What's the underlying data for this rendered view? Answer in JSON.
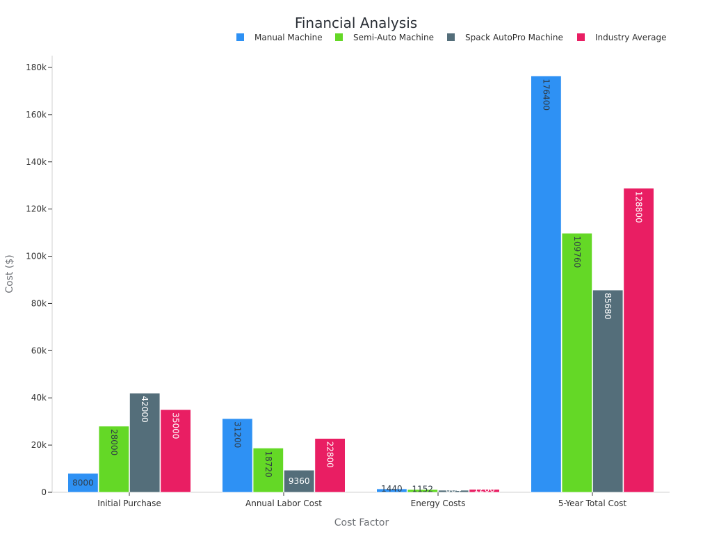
{
  "chart_data": {
    "type": "bar",
    "title": "Financial Analysis",
    "xlabel": "Cost Factor",
    "ylabel": "Cost ($)",
    "categories": [
      "Initial Purchase",
      "Annual Labor Cost",
      "Energy Costs",
      "5-Year Total Cost"
    ],
    "series": [
      {
        "name": "Manual Machine",
        "color": "#2E91F4",
        "values": [
          8000,
          31200,
          1440,
          176400
        ],
        "label_color": "#2f3b46"
      },
      {
        "name": "Semi-Auto Machine",
        "color": "#64D826",
        "values": [
          28000,
          18720,
          1152,
          109760
        ],
        "label_color": "#2f3b46"
      },
      {
        "name": "Spack AutoPro Machine",
        "color": "#546E7A",
        "values": [
          42000,
          9360,
          864,
          85680
        ],
        "label_color": "#ffffff"
      },
      {
        "name": "Industry Average",
        "color": "#E91E63",
        "values": [
          35000,
          22800,
          1200,
          128800
        ],
        "label_color": "#ffffff"
      }
    ],
    "ylim": [
      0,
      185000
    ],
    "yticks": [
      0,
      20000,
      40000,
      60000,
      80000,
      100000,
      120000,
      140000,
      160000,
      180000
    ],
    "ytick_labels": [
      "0",
      "20k",
      "40k",
      "60k",
      "80k",
      "100k",
      "120k",
      "140k",
      "160k",
      "180k"
    ],
    "legend_position": "top",
    "grid": false
  }
}
